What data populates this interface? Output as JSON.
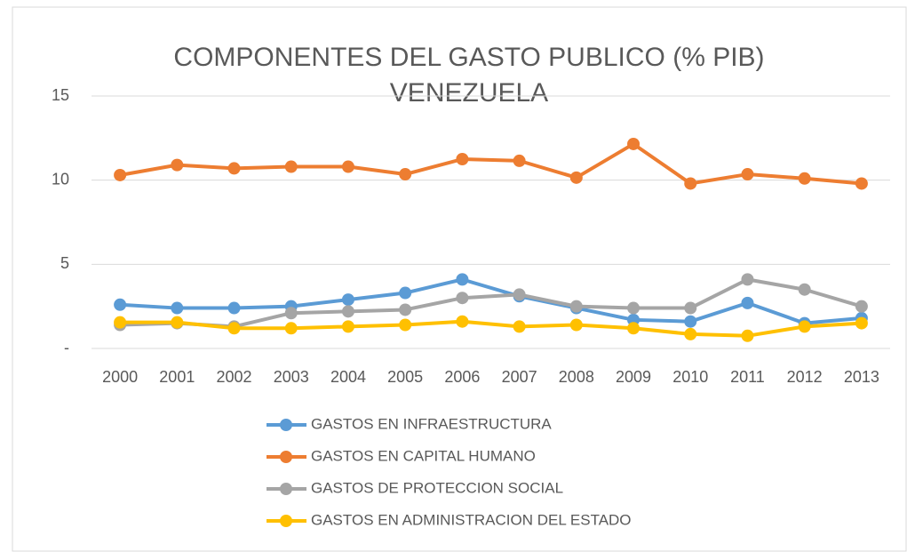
{
  "chart_data": {
    "type": "line",
    "title": [
      "COMPONENTES DEL GASTO PUBLICO  (% PIB)",
      "VENEZUELA"
    ],
    "categories": [
      "2000",
      "2001",
      "2002",
      "2003",
      "2004",
      "2005",
      "2006",
      "2007",
      "2008",
      "2009",
      "2010",
      "2011",
      "2012",
      "2013"
    ],
    "series": [
      {
        "name": "GASTOS EN INFRAESTRUCTURA",
        "color": "#5b9bd5",
        "values": [
          2.6,
          2.4,
          2.4,
          2.5,
          2.9,
          3.3,
          4.1,
          3.1,
          2.4,
          1.7,
          1.6,
          2.7,
          1.5,
          1.8
        ]
      },
      {
        "name": "GASTOS EN CAPITAL HUMANO",
        "color": "#ed7d31",
        "values": [
          10.3,
          10.9,
          10.7,
          10.8,
          10.8,
          10.35,
          11.25,
          11.15,
          10.15,
          12.15,
          9.8,
          10.35,
          10.1,
          9.8
        ]
      },
      {
        "name": "GASTOS DE PROTECCION SOCIAL",
        "color": "#a5a5a5",
        "values": [
          1.4,
          1.5,
          1.3,
          2.1,
          2.2,
          2.3,
          3.0,
          3.2,
          2.5,
          2.4,
          2.4,
          4.1,
          3.5,
          2.5
        ]
      },
      {
        "name": "GASTOS EN ADMINISTRACION DEL ESTADO",
        "color": "#ffc000",
        "values": [
          1.55,
          1.55,
          1.2,
          1.2,
          1.3,
          1.4,
          1.6,
          1.3,
          1.4,
          1.2,
          0.85,
          0.75,
          1.3,
          1.5
        ]
      }
    ],
    "ylim": [
      0,
      15
    ],
    "yticks": [
      {
        "value": 0,
        "label": "-"
      },
      5,
      10,
      15
    ],
    "grid": true,
    "legend": "bottom"
  }
}
